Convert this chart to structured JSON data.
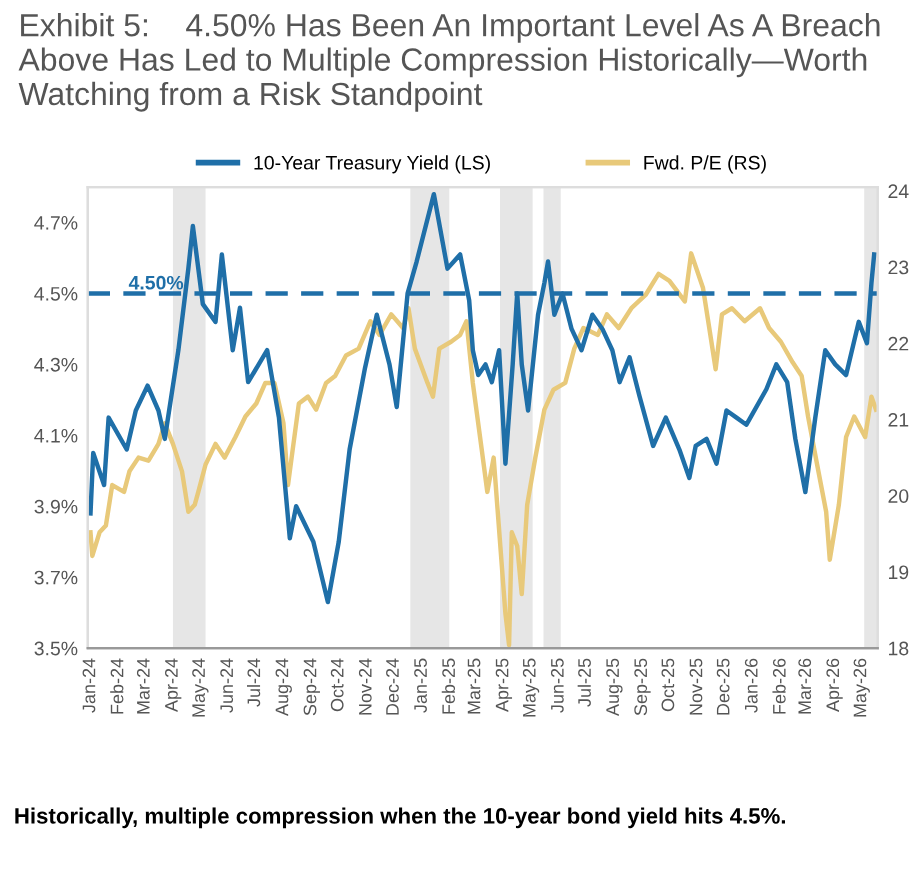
{
  "chart_data": {
    "type": "line",
    "title": "Exhibit 5:    4.50% Has Been An Important Level As A Breach Above Has Led to Multiple Compression Historically—Worth Watching from a Risk Standpoint",
    "annotations": [
      "Historically, multiple compression when the 10-year bond yield hits 4.5%."
    ],
    "series": [
      {
        "name": "10-Year Treasury Yield (LS)",
        "color": "#1f6fa8",
        "x": [
          "2024-01-01",
          "2024-01-04",
          "2024-01-16",
          "2024-01-21",
          "2024-02-10",
          "2024-02-20",
          "2024-03-04",
          "2024-03-16",
          "2024-03-23",
          "2024-04-07",
          "2024-04-18",
          "2024-04-23",
          "2024-05-04",
          "2024-05-18",
          "2024-05-25",
          "2024-06-06",
          "2024-06-14",
          "2024-06-23",
          "2024-07-14",
          "2024-07-27",
          "2024-08-08",
          "2024-08-15",
          "2024-09-03",
          "2024-09-19",
          "2024-10-01",
          "2024-10-13",
          "2024-10-30",
          "2024-11-12",
          "2024-11-26",
          "2024-12-04",
          "2024-12-16",
          "2024-12-26",
          "2025-01-14",
          "2025-01-29",
          "2025-02-12",
          "2025-02-22",
          "2025-02-26",
          "2025-03-04",
          "2025-03-12",
          "2025-03-19",
          "2025-03-27",
          "2025-04-03",
          "2025-04-11",
          "2025-04-16",
          "2025-04-21",
          "2025-04-28",
          "2025-05-09",
          "2025-05-16",
          "2025-05-20",
          "2025-05-27",
          "2025-06-05",
          "2025-06-15",
          "2025-06-26",
          "2025-07-08",
          "2025-07-19",
          "2025-07-30",
          "2025-08-07",
          "2025-08-18",
          "2025-08-29",
          "2025-09-13",
          "2025-09-27",
          "2025-10-12",
          "2025-10-23",
          "2025-10-30",
          "2025-11-11",
          "2025-11-22",
          "2025-12-03",
          "2025-12-14",
          "2025-12-25",
          "2026-01-16",
          "2026-01-27",
          "2026-02-08",
          "2026-02-17",
          "2026-02-28",
          "2026-03-11",
          "2026-03-22",
          "2026-04-02",
          "2026-04-14",
          "2026-04-28",
          "2026-05-07",
          "2026-05-12",
          "2026-05-15"
        ],
        "values": [
          3.88,
          4.05,
          3.96,
          4.15,
          4.06,
          4.17,
          4.24,
          4.17,
          4.09,
          4.34,
          4.57,
          4.69,
          4.47,
          4.42,
          4.61,
          4.34,
          4.46,
          4.25,
          4.34,
          4.15,
          3.81,
          3.9,
          3.8,
          3.63,
          3.8,
          4.06,
          4.29,
          4.44,
          4.3,
          4.18,
          4.5,
          4.59,
          4.78,
          4.57,
          4.61,
          4.48,
          4.34,
          4.27,
          4.3,
          4.25,
          4.34,
          4.02,
          4.3,
          4.5,
          4.3,
          4.17,
          4.44,
          4.53,
          4.59,
          4.44,
          4.5,
          4.4,
          4.34,
          4.44,
          4.4,
          4.34,
          4.25,
          4.32,
          4.21,
          4.07,
          4.15,
          4.06,
          3.98,
          4.07,
          4.09,
          4.02,
          4.17,
          4.15,
          4.13,
          4.23,
          4.3,
          4.25,
          4.09,
          3.94,
          4.15,
          4.34,
          4.3,
          4.27,
          4.42,
          4.36,
          4.53,
          4.61
        ]
      },
      {
        "name": "Fwd. P/E (RS)",
        "color": "#e8c97a",
        "axis": "y2",
        "x": [
          "2024-01-01",
          "2024-01-03",
          "2024-01-11",
          "2024-01-18",
          "2024-01-25",
          "2024-02-07",
          "2024-02-13",
          "2024-02-23",
          "2024-03-05",
          "2024-03-16",
          "2024-03-23",
          "2024-04-01",
          "2024-04-11",
          "2024-04-18",
          "2024-04-25",
          "2024-04-29",
          "2024-05-07",
          "2024-05-18",
          "2024-05-28",
          "2024-06-09",
          "2024-06-20",
          "2024-07-02",
          "2024-07-12",
          "2024-07-22",
          "2024-08-01",
          "2024-08-06",
          "2024-08-11",
          "2024-08-18",
          "2024-08-28",
          "2024-09-06",
          "2024-09-17",
          "2024-09-27",
          "2024-10-09",
          "2024-10-23",
          "2024-11-05",
          "2024-11-15",
          "2024-11-28",
          "2024-12-11",
          "2024-12-17",
          "2024-12-24",
          "2025-01-07",
          "2025-01-13",
          "2025-01-20",
          "2025-02-02",
          "2025-02-12",
          "2025-02-19",
          "2025-02-26",
          "2025-03-08",
          "2025-03-14",
          "2025-03-21",
          "2025-04-03",
          "2025-04-07",
          "2025-04-10",
          "2025-04-16",
          "2025-04-21",
          "2025-04-27",
          "2025-05-06",
          "2025-05-16",
          "2025-05-26",
          "2025-06-08",
          "2025-06-18",
          "2025-06-28",
          "2025-07-14",
          "2025-07-24",
          "2025-08-06",
          "2025-08-20",
          "2025-09-05",
          "2025-09-19",
          "2025-10-01",
          "2025-10-18",
          "2025-10-25",
          "2025-11-07",
          "2025-11-14",
          "2025-11-21",
          "2025-11-28",
          "2025-12-09",
          "2025-12-23",
          "2026-01-09",
          "2026-01-19",
          "2026-02-01",
          "2026-02-14",
          "2026-02-24",
          "2026-03-03",
          "2026-03-13",
          "2026-03-23",
          "2026-03-27",
          "2026-04-06",
          "2026-04-14",
          "2026-04-23",
          "2026-05-05",
          "2026-05-12",
          "2026-05-17"
        ],
        "values": [
          19.52,
          19.21,
          19.52,
          19.61,
          20.14,
          20.05,
          20.32,
          20.5,
          20.46,
          20.68,
          20.95,
          20.68,
          20.32,
          19.79,
          19.88,
          20.05,
          20.41,
          20.68,
          20.5,
          20.77,
          21.04,
          21.21,
          21.48,
          21.48,
          20.95,
          20.14,
          20.59,
          21.21,
          21.3,
          21.13,
          21.48,
          21.57,
          21.84,
          21.93,
          22.29,
          22.11,
          22.38,
          22.2,
          22.46,
          21.93,
          21.48,
          21.3,
          21.93,
          22.02,
          22.11,
          22.29,
          21.48,
          20.59,
          20.05,
          20.5,
          18.45,
          18.04,
          19.52,
          19.34,
          18.71,
          19.88,
          20.5,
          21.13,
          21.39,
          21.48,
          21.93,
          22.2,
          22.11,
          22.38,
          22.2,
          22.46,
          22.64,
          22.91,
          22.82,
          22.55,
          23.18,
          22.73,
          22.2,
          21.66,
          22.38,
          22.46,
          22.29,
          22.46,
          22.2,
          22.02,
          21.75,
          21.57,
          21.04,
          20.41,
          19.79,
          19.16,
          19.88,
          20.77,
          21.04,
          20.77,
          21.3,
          21.13
        ]
      }
    ],
    "xlim": [
      "2023-12-29",
      "2026-05-19"
    ],
    "xticks": [
      {
        "value": "2024-01-01",
        "label": "Jan-24"
      },
      {
        "value": "2024-02-01",
        "label": "Feb-24"
      },
      {
        "value": "2024-03-01",
        "label": "Mar-24"
      },
      {
        "value": "2024-04-01",
        "label": "Apr-24"
      },
      {
        "value": "2024-05-01",
        "label": "May-24"
      },
      {
        "value": "2024-06-01",
        "label": "Jun-24"
      },
      {
        "value": "2024-07-01",
        "label": "Jul-24"
      },
      {
        "value": "2024-08-01",
        "label": "Aug-24"
      },
      {
        "value": "2024-09-01",
        "label": "Sep-24"
      },
      {
        "value": "2024-10-01",
        "label": "Oct-24"
      },
      {
        "value": "2024-11-01",
        "label": "Nov-24"
      },
      {
        "value": "2024-12-01",
        "label": "Dec-24"
      },
      {
        "value": "2025-01-01",
        "label": "Jan-25"
      },
      {
        "value": "2025-02-01",
        "label": "Feb-25"
      },
      {
        "value": "2025-03-01",
        "label": "Mar-25"
      },
      {
        "value": "2025-04-01",
        "label": "Apr-25"
      },
      {
        "value": "2025-05-01",
        "label": "May-25"
      },
      {
        "value": "2025-06-01",
        "label": "Jun-25"
      },
      {
        "value": "2025-07-01",
        "label": "Jul-25"
      },
      {
        "value": "2025-08-01",
        "label": "Aug-25"
      },
      {
        "value": "2025-09-01",
        "label": "Sep-25"
      },
      {
        "value": "2025-10-01",
        "label": "Oct-25"
      },
      {
        "value": "2025-11-01",
        "label": "Nov-25"
      },
      {
        "value": "2025-12-01",
        "label": "Dec-25"
      },
      {
        "value": "2026-01-01",
        "label": "Jan-26"
      },
      {
        "value": "2026-02-01",
        "label": "Feb-26"
      },
      {
        "value": "2026-03-01",
        "label": "Mar-26"
      },
      {
        "value": "2026-04-01",
        "label": "Apr-26"
      },
      {
        "value": "2026-05-01",
        "label": "May-26"
      }
    ],
    "ylim": [
      3.5,
      4.8
    ],
    "yticks": [
      {
        "value": 3.5,
        "label": "3.5%"
      },
      {
        "value": 3.7,
        "label": "3.7%"
      },
      {
        "value": 3.9,
        "label": "3.9%"
      },
      {
        "value": 4.1,
        "label": "4.1%"
      },
      {
        "value": 4.3,
        "label": "4.3%"
      },
      {
        "value": 4.5,
        "label": "4.5%"
      },
      {
        "value": 4.7,
        "label": "4.7%"
      }
    ],
    "y2lim": [
      18,
      24.05
    ],
    "y2ticks": [
      18,
      19,
      20,
      21,
      22,
      23,
      24
    ],
    "ref_lines": [
      {
        "axis": "y",
        "value": 4.5,
        "label": "4.50%",
        "color": "#1f6fa8",
        "line_style": "dashed"
      }
    ],
    "bands": [
      {
        "axis": "x",
        "from": "2024-04-01",
        "to": "2024-05-07",
        "color": "#e6e6e6"
      },
      {
        "axis": "x",
        "from": "2024-12-19",
        "to": "2025-01-31",
        "color": "#e6e6e6"
      },
      {
        "axis": "x",
        "from": "2025-03-28",
        "to": "2025-05-03",
        "color": "#e6e6e6"
      },
      {
        "axis": "x",
        "from": "2025-05-15",
        "to": "2025-06-03",
        "color": "#e6e6e6"
      },
      {
        "axis": "x",
        "from": "2026-05-04",
        "to": "2026-05-19",
        "color": "#e6e6e6"
      }
    ],
    "legend": "top",
    "grid": false
  }
}
